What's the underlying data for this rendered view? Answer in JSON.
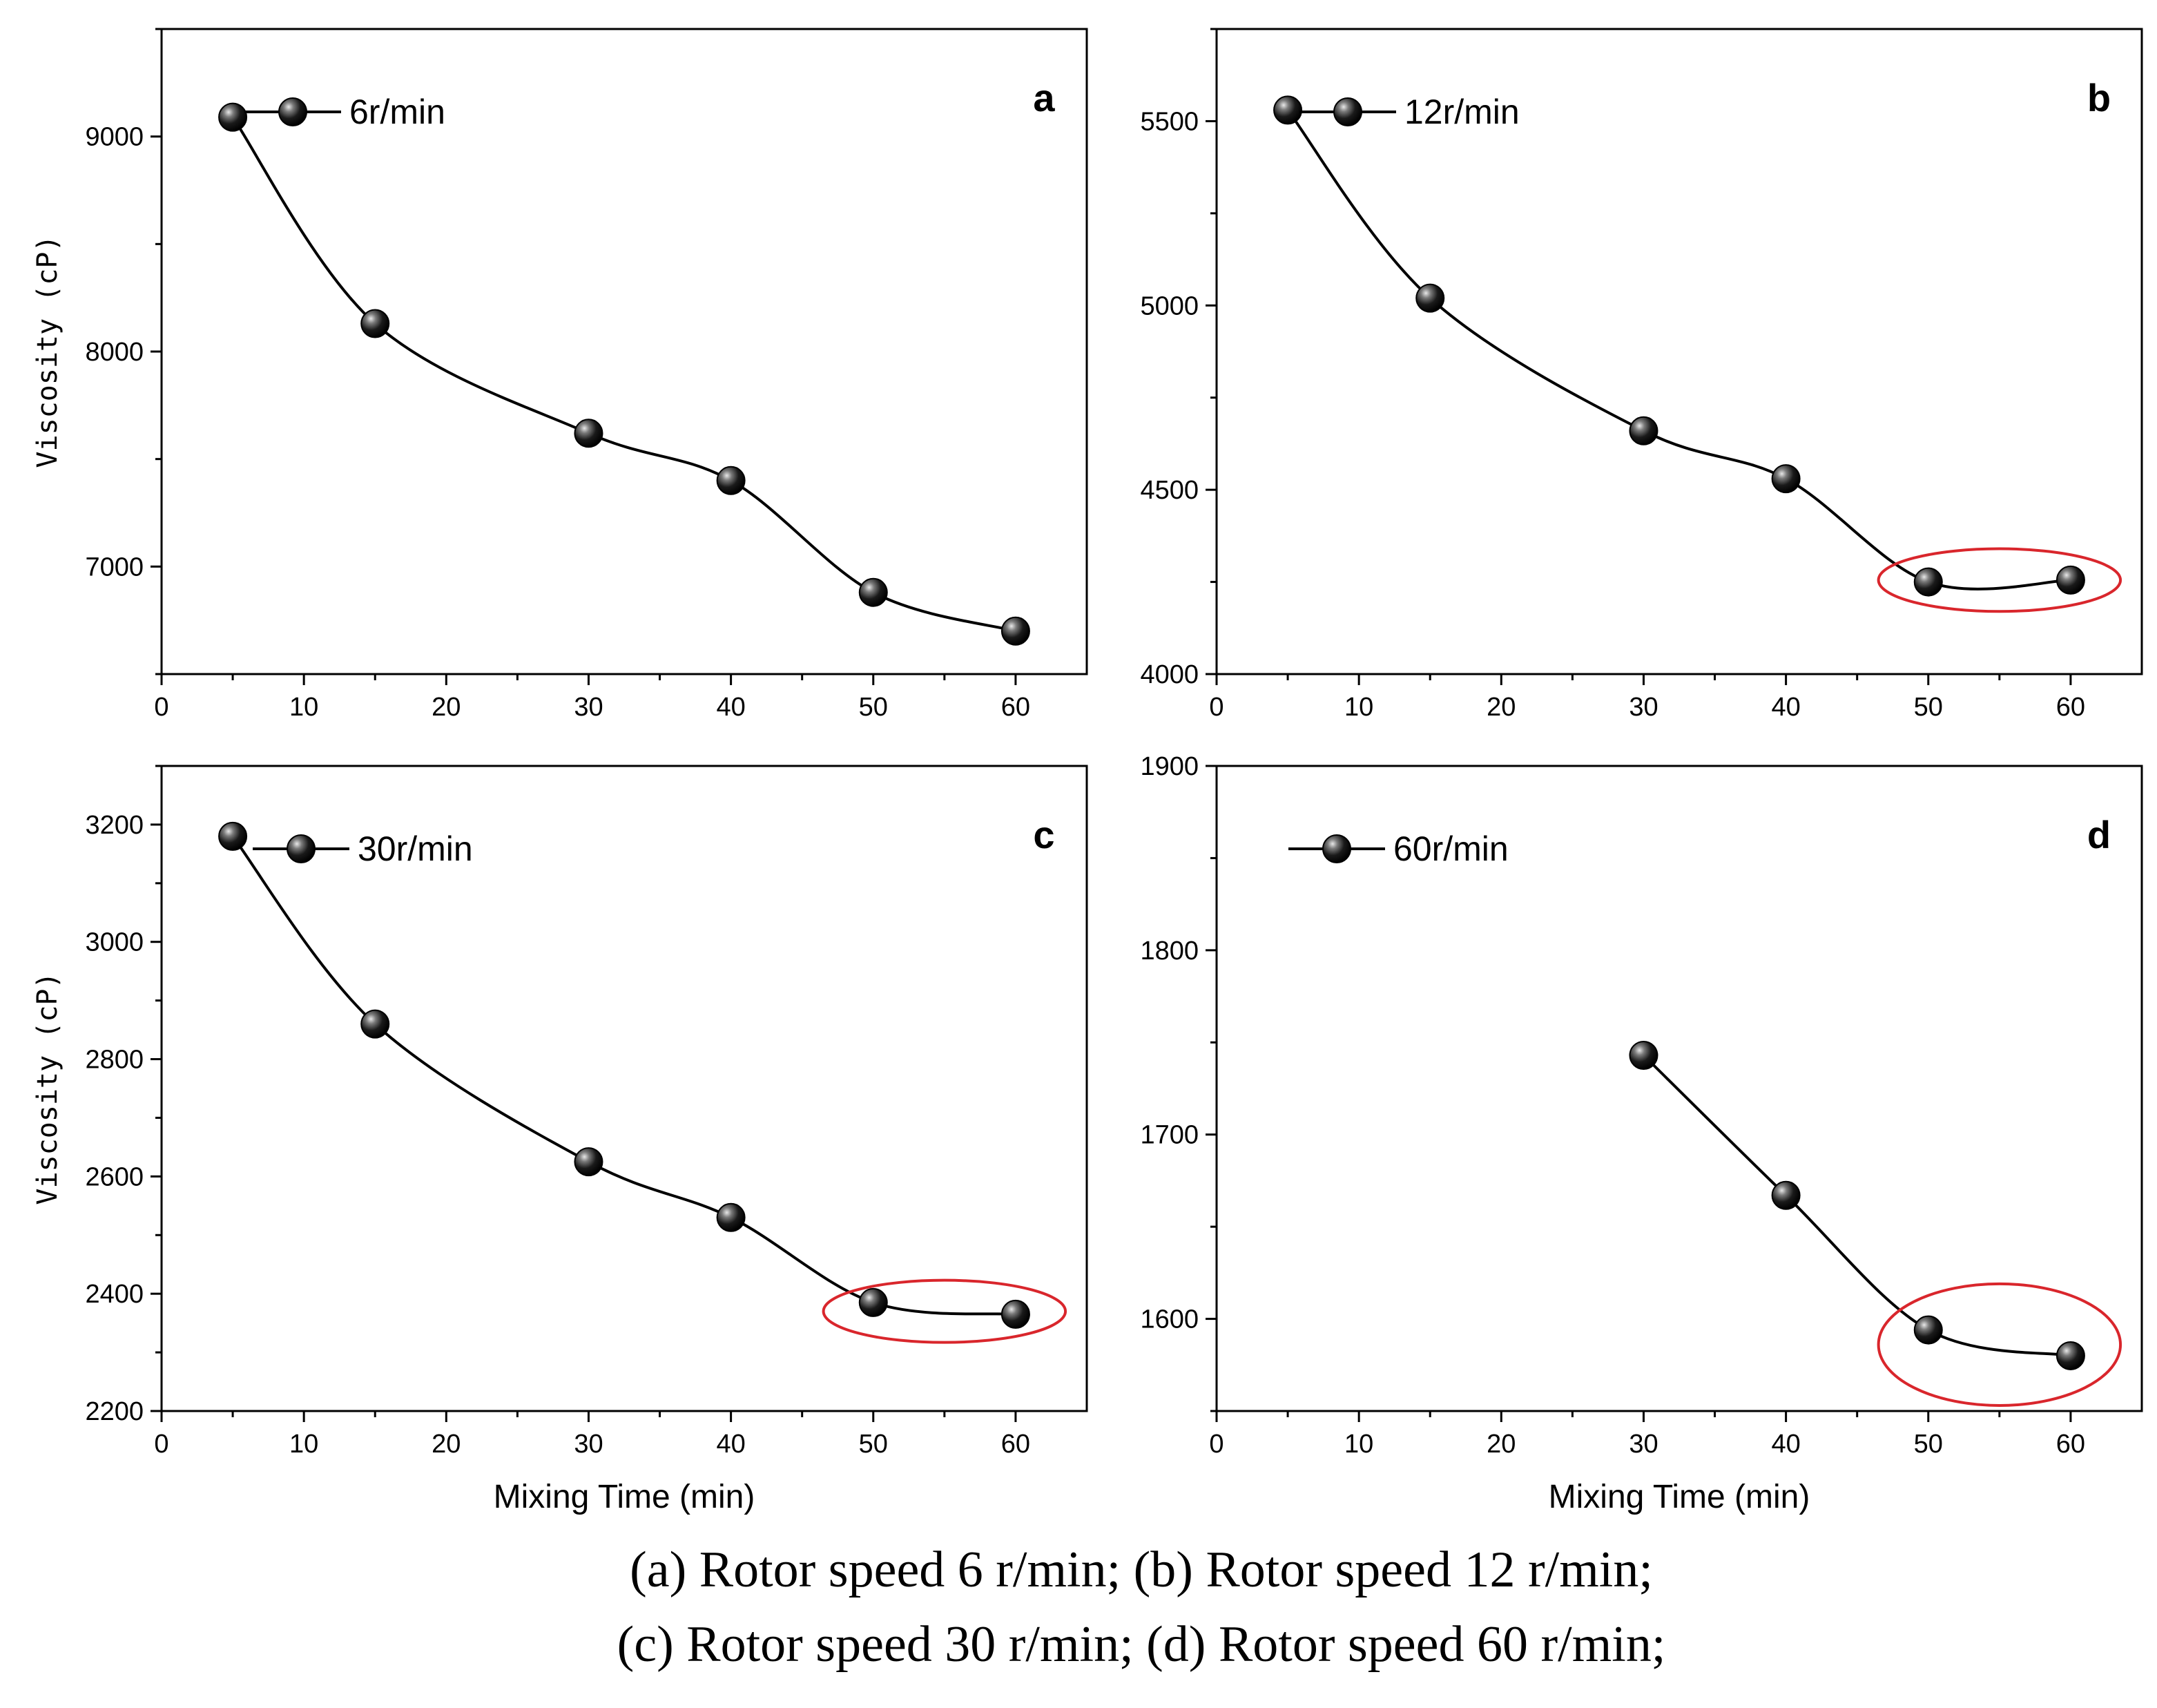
{
  "chart_data": [
    {
      "type": "line",
      "panel_letter": "a",
      "xlabel": "",
      "ylabel": "Viscosity (cP)",
      "xlim": [
        0,
        65
      ],
      "ylim": [
        6500,
        9500
      ],
      "xticks": [
        0,
        10,
        20,
        30,
        40,
        50,
        60
      ],
      "yticks": [
        7000,
        8000,
        9000
      ],
      "series": [
        {
          "name": "6r/min",
          "x": [
            5,
            15,
            30,
            40,
            50,
            60
          ],
          "y": [
            9090,
            8130,
            7620,
            7400,
            6880,
            6700
          ]
        }
      ],
      "legend_position": "top-left",
      "highlight": null
    },
    {
      "type": "line",
      "panel_letter": "b",
      "xlabel": "",
      "ylabel": "",
      "xlim": [
        0,
        65
      ],
      "ylim": [
        4000,
        5750
      ],
      "xticks": [
        0,
        10,
        20,
        30,
        40,
        50,
        60
      ],
      "yticks": [
        4000,
        4500,
        5000,
        5500
      ],
      "series": [
        {
          "name": "12r/min",
          "x": [
            5,
            15,
            30,
            40,
            50,
            60
          ],
          "y": [
            5530,
            5020,
            4660,
            4530,
            4250,
            4255
          ]
        }
      ],
      "legend_position": "top-left",
      "highlight": {
        "x": 55,
        "y": 4255,
        "rx": 8.5,
        "ry": 85,
        "color": "#d9262c"
      }
    },
    {
      "type": "line",
      "panel_letter": "c",
      "xlabel": "Mixing Time (min)",
      "ylabel": "Viscosity (cP)",
      "xlim": [
        0,
        65
      ],
      "ylim": [
        2200,
        3300
      ],
      "xticks": [
        0,
        10,
        20,
        30,
        40,
        50,
        60
      ],
      "yticks": [
        2200,
        2400,
        2600,
        2800,
        3000,
        3200
      ],
      "series": [
        {
          "name": "30r/min",
          "x": [
            5,
            15,
            30,
            40,
            50,
            60
          ],
          "y": [
            3180,
            2860,
            2625,
            2530,
            2385,
            2365
          ]
        }
      ],
      "legend_position": "top-left",
      "highlight": {
        "x": 55,
        "y": 2370,
        "rx": 8.5,
        "ry": 53,
        "color": "#d9262c"
      }
    },
    {
      "type": "line",
      "panel_letter": "d",
      "xlabel": "Mixing Time (min)",
      "ylabel": "",
      "xlim": [
        0,
        65
      ],
      "ylim": [
        1550,
        1900
      ],
      "xticks": [
        0,
        10,
        20,
        30,
        40,
        50,
        60
      ],
      "yticks": [
        1600,
        1700,
        1800,
        1900
      ],
      "series": [
        {
          "name": "60r/min",
          "x": [
            30,
            40,
            50,
            60
          ],
          "y": [
            1743,
            1667,
            1594,
            1580
          ]
        }
      ],
      "legend_position": "top-left",
      "highlight": {
        "x": 55,
        "y": 1586,
        "rx": 8.5,
        "ry": 33,
        "color": "#d9262c"
      }
    }
  ],
  "caption": {
    "line1": "(a) Rotor speed 6 r/min; (b) Rotor speed 12 r/min;",
    "line2": "(c) Rotor speed 30 r/min; (d) Rotor speed 60 r/min;"
  }
}
